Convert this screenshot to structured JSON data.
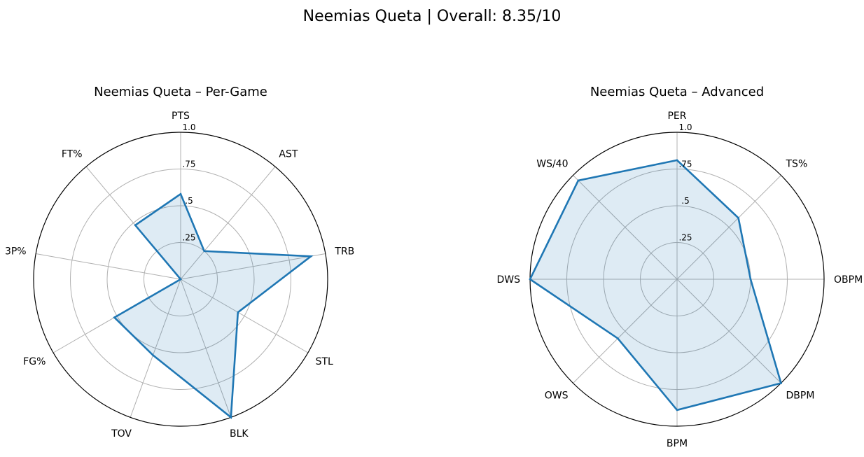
{
  "figure": {
    "title": "Neemias Queta | Overall: 8.35/10"
  },
  "style": {
    "series_color": "#1f77b4",
    "fill_color": "#1f77b4",
    "grid_color": "#b0b0b0",
    "frame_color": "#000000"
  },
  "chart_data": [
    {
      "type": "radar",
      "title": "Neemias Queta – Per-Game",
      "categories": [
        "PTS",
        "AST",
        "TRB",
        "STL",
        "BLK",
        "TOV",
        "FG%",
        "3P%",
        "FT%"
      ],
      "values": [
        0.58,
        0.25,
        0.9,
        0.45,
        1.0,
        0.55,
        0.52,
        0.0,
        0.48
      ],
      "rlim": [
        0,
        1
      ],
      "rticks": [
        0.25,
        0.5,
        0.75,
        1.0
      ],
      "rtick_labels": [
        ".25",
        ".5",
        ".75",
        "1.0"
      ],
      "grid": true
    },
    {
      "type": "radar",
      "title": "Neemias Queta – Advanced",
      "categories": [
        "PER",
        "TS%",
        "OBPM",
        "DBPM",
        "BPM",
        "OWS",
        "DWS",
        "WS/40"
      ],
      "values": [
        0.81,
        0.59,
        0.5,
        1.0,
        0.89,
        0.57,
        1.0,
        0.95
      ],
      "rlim": [
        0,
        1
      ],
      "rticks": [
        0.25,
        0.5,
        0.75,
        1.0
      ],
      "rtick_labels": [
        ".25",
        ".5",
        ".75",
        "1.0"
      ],
      "grid": true
    }
  ]
}
